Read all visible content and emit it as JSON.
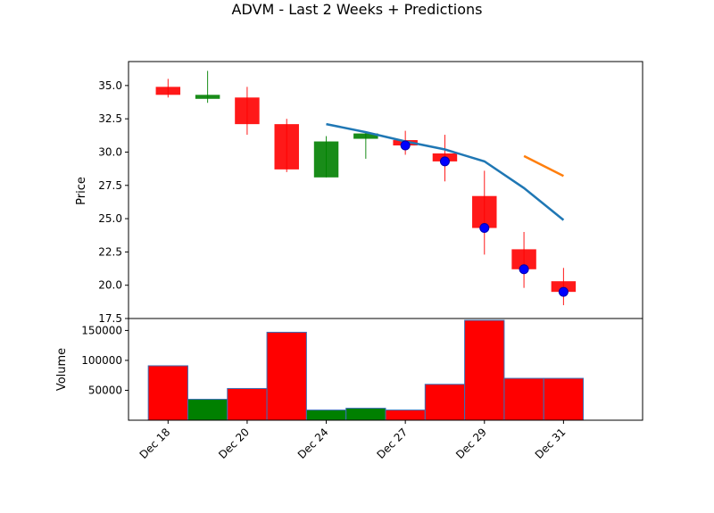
{
  "chart_data": {
    "type": "candlestick",
    "title": "ADVM - Last 2 Weeks + Predictions",
    "price_panel": {
      "ylabel": "Price",
      "ylim": [
        17.5,
        36.8
      ],
      "yticks": [
        "17.5",
        "20.0",
        "22.5",
        "25.0",
        "27.5",
        "30.0",
        "32.5",
        "35.0"
      ],
      "candles": [
        {
          "open": 34.3,
          "close": 34.9,
          "high": 35.5,
          "low": 34.1,
          "color": "red"
        },
        {
          "open": 34.0,
          "close": 34.3,
          "high": 36.1,
          "low": 33.7,
          "color": "green"
        },
        {
          "open": 34.1,
          "close": 32.1,
          "high": 34.9,
          "low": 31.3,
          "color": "red"
        },
        {
          "open": 32.1,
          "close": 28.7,
          "high": 32.5,
          "low": 28.5,
          "color": "red"
        },
        {
          "open": 28.1,
          "close": 30.8,
          "high": 31.2,
          "low": 28.1,
          "color": "green"
        },
        {
          "open": 31.0,
          "close": 31.4,
          "high": 31.5,
          "low": 29.5,
          "color": "green"
        },
        {
          "open": 30.9,
          "close": 30.5,
          "high": 31.6,
          "low": 29.8,
          "color": "red"
        },
        {
          "open": 29.9,
          "close": 29.3,
          "high": 31.3,
          "low": 27.8,
          "color": "red"
        },
        {
          "open": 26.7,
          "close": 24.3,
          "high": 28.6,
          "low": 22.3,
          "color": "red"
        },
        {
          "open": 22.7,
          "close": 21.2,
          "high": 24.0,
          "low": 19.8,
          "color": "red"
        },
        {
          "open": 20.3,
          "close": 19.5,
          "high": 21.3,
          "low": 18.5,
          "color": "red"
        }
      ],
      "markers": [
        {
          "index": 6,
          "value": 30.5
        },
        {
          "index": 7,
          "value": 29.3
        },
        {
          "index": 8,
          "value": 24.3
        },
        {
          "index": 9,
          "value": 21.2
        },
        {
          "index": 10,
          "value": 19.5
        }
      ],
      "lines": [
        {
          "color": "#1f77b4",
          "points": [
            [
              4,
              32.1
            ],
            [
              5,
              31.5
            ],
            [
              6,
              30.8
            ],
            [
              7,
              30.2
            ],
            [
              8,
              29.3
            ],
            [
              9,
              27.3
            ],
            [
              10,
              24.9
            ]
          ]
        },
        {
          "color": "#ff7f0e",
          "points": [
            [
              9,
              29.7
            ],
            [
              10,
              28.2
            ]
          ]
        }
      ]
    },
    "volume_panel": {
      "ylabel": "Volume",
      "ylim": [
        0,
        170000
      ],
      "yticks": [
        "50000",
        "100000",
        "150000"
      ],
      "values": [
        91000,
        35000,
        53000,
        147000,
        17000,
        20000,
        17000,
        60000,
        167000,
        70000,
        70000
      ],
      "colors": [
        "red",
        "green",
        "red",
        "red",
        "green",
        "green",
        "red",
        "red",
        "red",
        "red",
        "red"
      ]
    },
    "xticks": [
      {
        "index": 0,
        "label": "Dec 18"
      },
      {
        "index": 2,
        "label": "Dec 20"
      },
      {
        "index": 4,
        "label": "Dec 24"
      },
      {
        "index": 6,
        "label": "Dec 27"
      },
      {
        "index": 8,
        "label": "Dec 29"
      },
      {
        "index": 10,
        "label": "Dec 31"
      }
    ],
    "xlim": [
      -1,
      12
    ]
  }
}
